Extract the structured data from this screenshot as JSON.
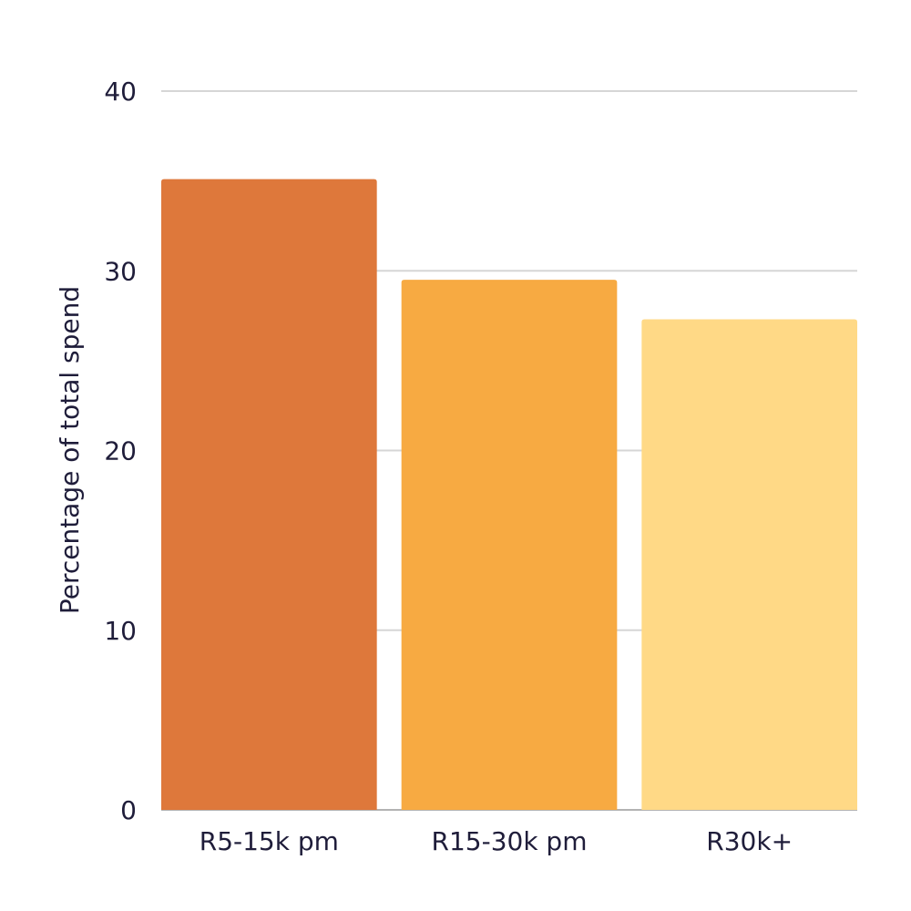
{
  "chart_data": {
    "type": "bar",
    "categories": [
      "R5-15k pm",
      "R15-30k pm",
      "R30k+"
    ],
    "values": [
      35.1,
      29.5,
      27.3
    ],
    "colors": [
      "#de783b",
      "#f7aa42",
      "#ffd986"
    ],
    "title": "",
    "xlabel": "",
    "ylabel": "Percentage of total spend",
    "ylim": [
      0,
      40
    ],
    "yticks": [
      0,
      10,
      20,
      30,
      40
    ],
    "ytick_labels": [
      "0",
      "10",
      "20",
      "30",
      "40"
    ],
    "grid": true,
    "legend": "none"
  }
}
